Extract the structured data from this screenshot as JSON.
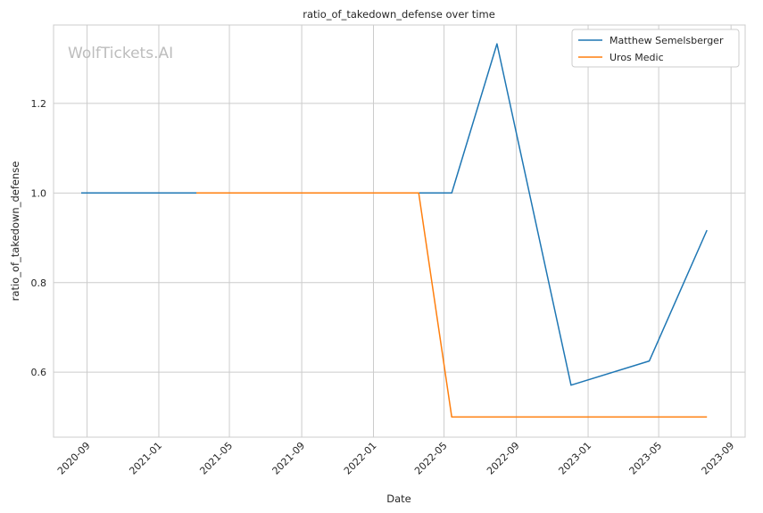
{
  "chart_data": {
    "type": "line",
    "title": "ratio_of_takedown_defense over time",
    "xlabel": "Date",
    "ylabel": "ratio_of_takedown_defense",
    "watermark": "WolfTickets.AI",
    "x_ticks": [
      "2020-09",
      "2021-01",
      "2021-05",
      "2021-09",
      "2022-01",
      "2022-05",
      "2022-09",
      "2023-01",
      "2023-05",
      "2023-09"
    ],
    "y_ticks": [
      "0.6",
      "0.8",
      "1.0",
      "1.2"
    ],
    "xlim": [
      "2020-07-06",
      "2023-09-25"
    ],
    "ylim": [
      0.455,
      1.375
    ],
    "grid": true,
    "legend_position": "top-right",
    "series": [
      {
        "name": "Matthew Semelsberger",
        "color": "#1f77b4",
        "points": [
          {
            "x": "2020-08-22",
            "y": 1.0
          },
          {
            "x": "2021-03-06",
            "y": 1.0
          },
          {
            "x": "2022-03-19",
            "y": 1.0
          },
          {
            "x": "2022-05-14",
            "y": 1.0
          },
          {
            "x": "2022-07-30",
            "y": 1.333
          },
          {
            "x": "2022-12-03",
            "y": 0.571
          },
          {
            "x": "2023-04-15",
            "y": 0.625
          },
          {
            "x": "2023-07-22",
            "y": 0.917
          }
        ]
      },
      {
        "name": "Uros Medic",
        "color": "#ff7f0e",
        "points": [
          {
            "x": "2021-03-06",
            "y": 1.0
          },
          {
            "x": "2022-03-19",
            "y": 1.0
          },
          {
            "x": "2022-05-14",
            "y": 0.5
          },
          {
            "x": "2023-07-22",
            "y": 0.5
          }
        ]
      }
    ]
  }
}
